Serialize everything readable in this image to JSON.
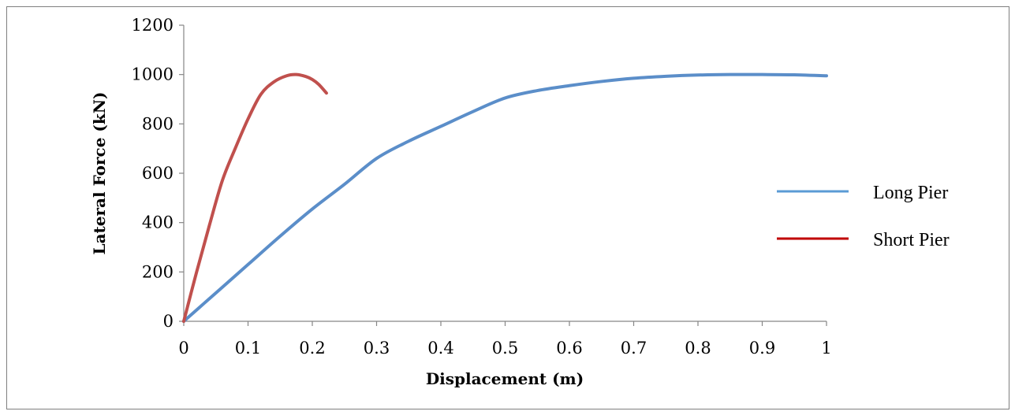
{
  "chart_data": {
    "type": "line",
    "title": "",
    "xlabel": "Displacement (m)",
    "ylabel": "Lateral Force (kN)",
    "xlim": [
      0,
      1
    ],
    "ylim": [
      0,
      1200
    ],
    "xticks": [
      "0",
      "0.1",
      "0.2",
      "0.3",
      "0.4",
      "0.5",
      "0.6",
      "0.7",
      "0.8",
      "0.9",
      "1"
    ],
    "yticks": [
      "0",
      "200",
      "400",
      "600",
      "800",
      "1000",
      "1200"
    ],
    "grid": false,
    "legend_position": "right",
    "series": [
      {
        "name": "Long Pier",
        "color": "#5b8ec9",
        "x": [
          0,
          0.05,
          0.1,
          0.15,
          0.2,
          0.25,
          0.3,
          0.35,
          0.4,
          0.45,
          0.5,
          0.55,
          0.6,
          0.65,
          0.7,
          0.75,
          0.8,
          0.85,
          0.9,
          0.95,
          1.0
        ],
        "y": [
          0,
          115,
          230,
          345,
          455,
          555,
          660,
          730,
          790,
          850,
          905,
          935,
          955,
          972,
          985,
          993,
          998,
          1000,
          1000,
          999,
          995
        ]
      },
      {
        "name": "Short Pier",
        "color": "#c0504d",
        "x": [
          0,
          0.02,
          0.04,
          0.06,
          0.08,
          0.1,
          0.12,
          0.14,
          0.16,
          0.175,
          0.19,
          0.2,
          0.21,
          0.222
        ],
        "y": [
          0,
          200,
          390,
          570,
          700,
          820,
          920,
          970,
          995,
          1000,
          992,
          980,
          960,
          925
        ]
      }
    ]
  }
}
